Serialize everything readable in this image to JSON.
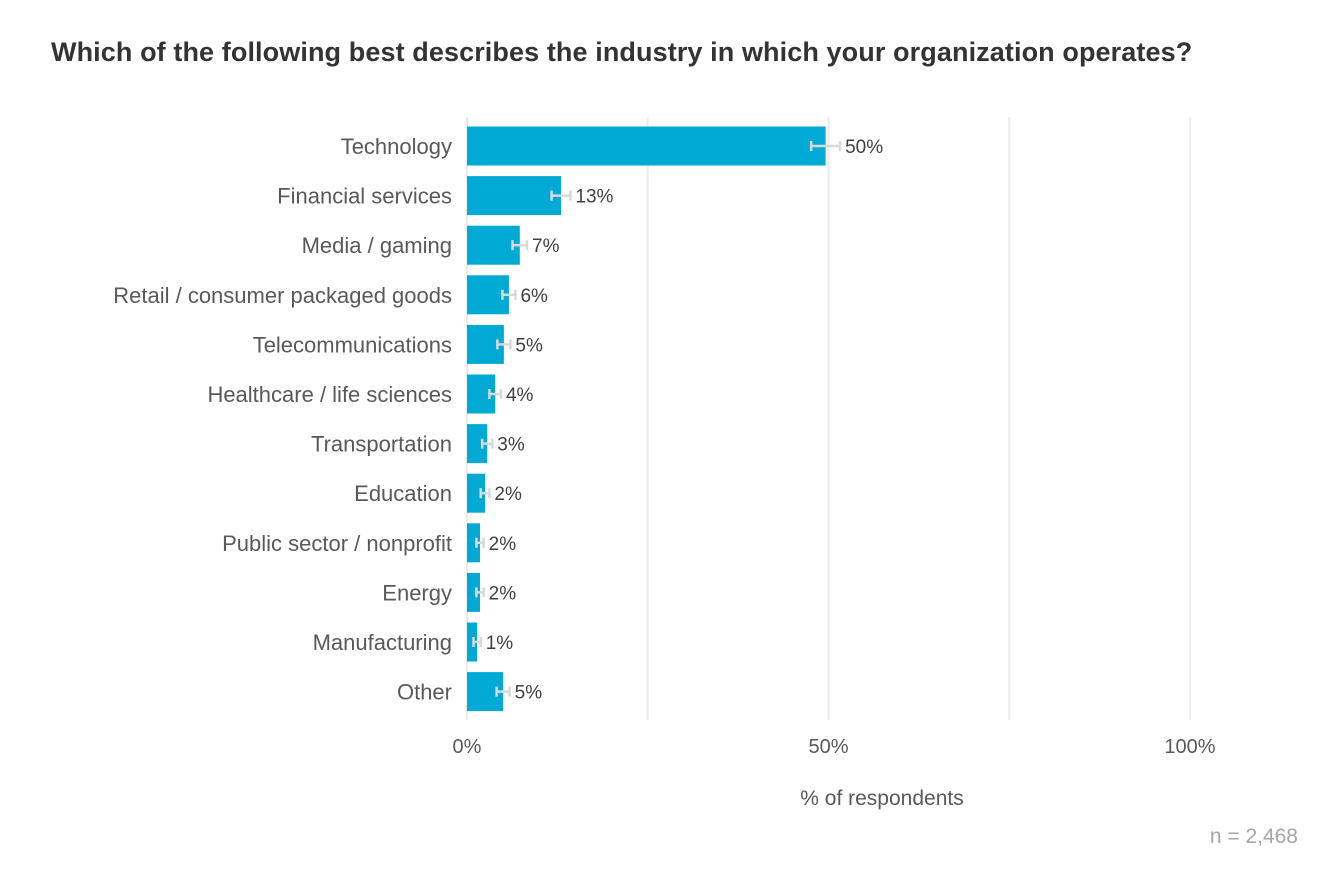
{
  "chart_data": {
    "type": "bar",
    "orientation": "horizontal",
    "title": "Which of the following best describes the industry in which your organization operates?",
    "categories": [
      "Technology",
      "Financial services",
      "Media / gaming",
      "Retail / consumer packaged goods",
      "Telecommunications",
      "Healthcare / life sciences",
      "Transportation",
      "Education",
      "Public sector / nonprofit",
      "Energy",
      "Manufacturing",
      "Other"
    ],
    "values": [
      49.6,
      13.0,
      7.3,
      5.8,
      5.1,
      3.9,
      2.8,
      2.5,
      1.8,
      1.8,
      1.4,
      5.0
    ],
    "error_margin": [
      2.0,
      1.3,
      1.0,
      0.9,
      0.9,
      0.8,
      0.7,
      0.6,
      0.5,
      0.5,
      0.5,
      0.9
    ],
    "value_labels": [
      "50%",
      "13%",
      "7%",
      "6%",
      "5%",
      "4%",
      "3%",
      "2%",
      "2%",
      "2%",
      "1%",
      "5%"
    ],
    "xlabel": "% of respondents",
    "ylabel": "",
    "xlim": [
      0,
      100
    ],
    "xticks": [
      0,
      50,
      100
    ],
    "xtick_labels": [
      "0%",
      "50%",
      "100%"
    ],
    "grid": true,
    "legend": "none",
    "bar_color": "#00aad4",
    "error_bar_color": "#d9d9d9",
    "grid_color": "#ebebeb",
    "footnote": "n =  2,468"
  }
}
